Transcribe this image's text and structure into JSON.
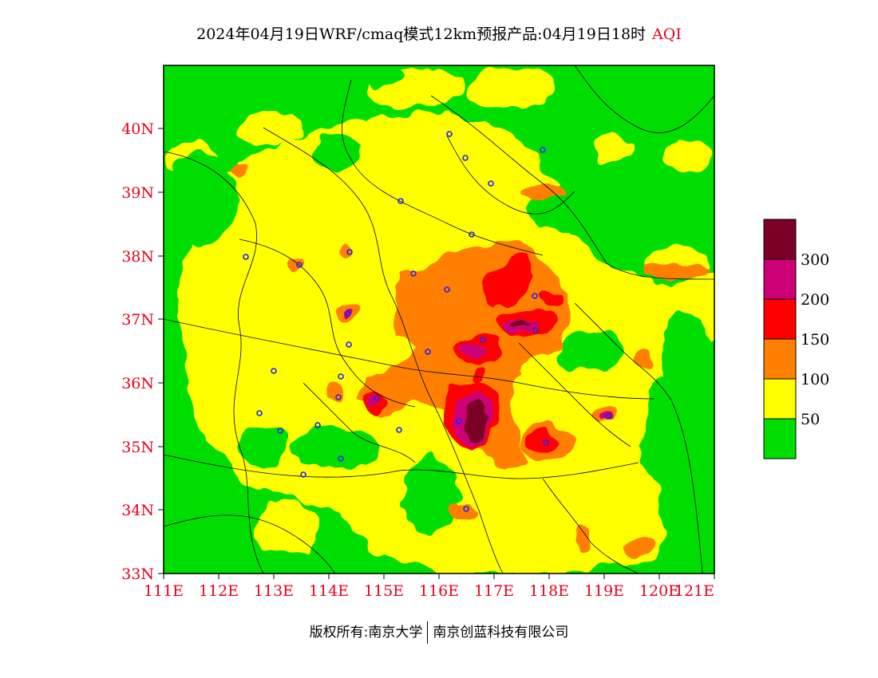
{
  "title": {
    "main": "2024年04月19日WRF/cmaq模式12km预报产品:04月19日18时",
    "variable": "AQI"
  },
  "axes": {
    "lat_labels": [
      "33N",
      "34N",
      "35N",
      "36N",
      "37N",
      "38N",
      "39N",
      "40N"
    ],
    "lon_labels": [
      "111E",
      "112E",
      "113E",
      "114E",
      "115E",
      "116E",
      "117E",
      "118E",
      "119E",
      "120E",
      "121E"
    ],
    "label_color": "#e8001c"
  },
  "legend": {
    "levels": [
      "50",
      "100",
      "150",
      "200",
      "300"
    ],
    "colors": [
      "#00dd00",
      "#ffff00",
      "#ff8000",
      "#ff0000",
      "#cc0077",
      "#7a0028"
    ]
  },
  "credit": {
    "left": "版权所有:南京大学",
    "right": "南京创蓝科技有限公司"
  }
}
